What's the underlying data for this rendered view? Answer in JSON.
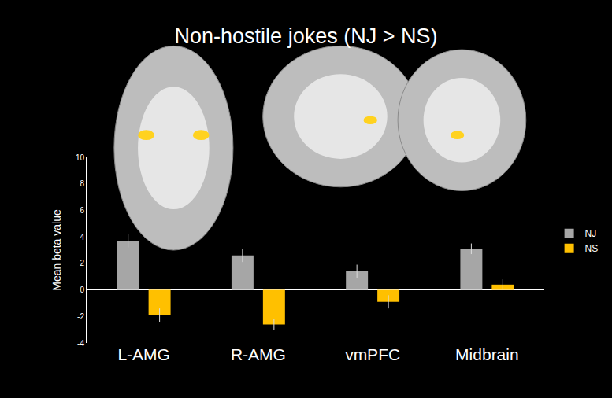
{
  "chart_data": {
    "type": "bar",
    "title": "Non-hostile jokes (NJ > NS)",
    "y_label": "Mean beta value",
    "categories": [
      "L-AMG",
      "R-AMG",
      "vmPFC",
      "Midbrain"
    ],
    "series": [
      {
        "name": "NJ",
        "color": "#a6a6a6",
        "values": [
          3.7,
          2.6,
          1.4,
          3.1
        ],
        "error": [
          0.5,
          0.5,
          0.5,
          0.4
        ]
      },
      {
        "name": "NS",
        "color": "#ffc000",
        "values": [
          -1.9,
          -2.6,
          -0.9,
          0.4
        ],
        "error": [
          0.5,
          0.4,
          0.5,
          0.4
        ]
      }
    ],
    "ylim": [
      -4,
      10
    ],
    "yticks": [
      -4,
      -2,
      0,
      2,
      4,
      6,
      8,
      10
    ],
    "grid": false,
    "legend": "right"
  }
}
